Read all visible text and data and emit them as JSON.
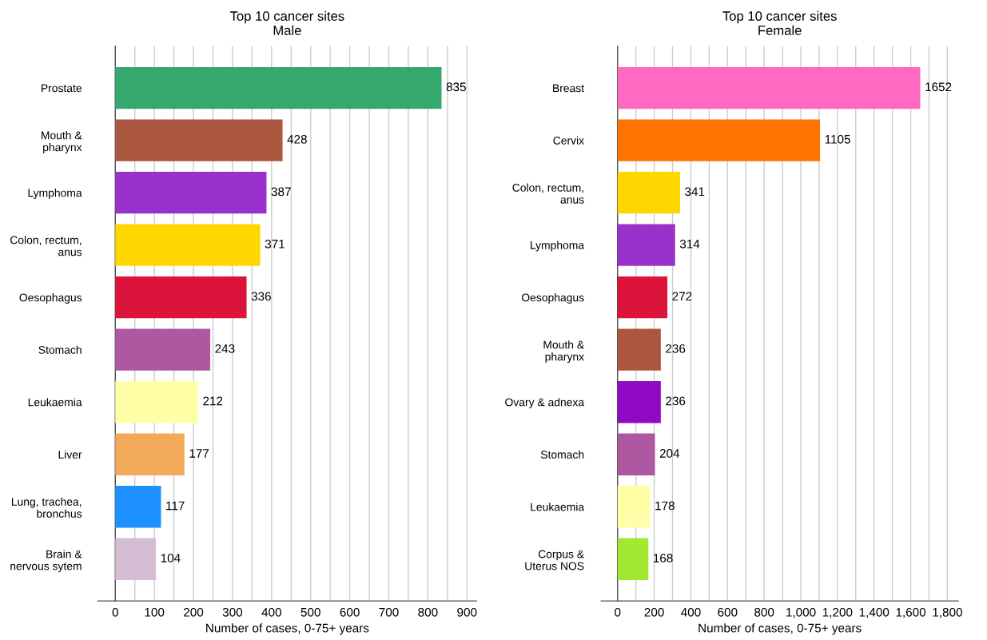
{
  "chart_data": [
    {
      "type": "bar",
      "orientation": "horizontal",
      "title": "Top 10 cancer sites\nMale",
      "xlabel": "Number of cases, 0-75+ years",
      "categories": [
        "Prostate",
        "Mouth &\npharynx",
        "Lymphoma",
        "Colon, rectum,\nanus",
        "Oesophagus",
        "Stomach",
        "Leukaemia",
        "Liver",
        "Lung, trachea,\nbronchus",
        "Brain &\nnervous sytem"
      ],
      "values": [
        835,
        428,
        387,
        371,
        336,
        243,
        212,
        177,
        117,
        104
      ],
      "colors": [
        "#35a86d",
        "#ab573f",
        "#9932cc",
        "#ffd700",
        "#dc143c",
        "#ad58a0",
        "#ffffa8",
        "#f2a95a",
        "#1e90ff",
        "#d6bcd3"
      ],
      "xlim": [
        -45,
        925
      ],
      "xticks": [
        0,
        {
          "value": 50,
          "label": null
        },
        100,
        {
          "value": 150,
          "label": null
        },
        200,
        {
          "value": 250,
          "label": null
        },
        300,
        {
          "value": 350,
          "label": null
        },
        400,
        {
          "value": 450,
          "label": null
        },
        500,
        {
          "value": 550,
          "label": null
        },
        600,
        {
          "value": 650,
          "label": null
        },
        700,
        {
          "value": 750,
          "label": null
        },
        800,
        {
          "value": 850,
          "label": null
        },
        900
      ],
      "grid": "x",
      "data_labels": true
    },
    {
      "type": "bar",
      "orientation": "horizontal",
      "title": "Top 10 cancer sites\nFemale",
      "xlabel": "Number of cases, 0-75+ years",
      "categories": [
        "Breast",
        "Cervix",
        "Colon, rectum,\nanus",
        "Lymphoma",
        "Oesophagus",
        "Mouth &\npharynx",
        "Ovary & adnexa",
        "Stomach",
        "Leukaemia",
        "Corpus &\nUterus NOS"
      ],
      "values": [
        1652,
        1105,
        341,
        314,
        272,
        236,
        236,
        204,
        178,
        168
      ],
      "colors": [
        "#ff69bf",
        "#ff7400",
        "#ffd700",
        "#9932cc",
        "#dc143c",
        "#ab573f",
        "#8f0ac2",
        "#ad58a0",
        "#ffffa8",
        "#a0e832"
      ],
      "xlim": [
        -90,
        1860
      ],
      "xticks": [
        0,
        {
          "value": 100,
          "label": null
        },
        {
          "value": 200,
          "label": "200"
        },
        {
          "value": 300,
          "label": null
        },
        {
          "value": 400,
          "label": "400"
        },
        {
          "value": 500,
          "label": null
        },
        {
          "value": 600,
          "label": "600"
        },
        {
          "value": 700,
          "label": null
        },
        {
          "value": 800,
          "label": "800"
        },
        {
          "value": 900,
          "label": null
        },
        {
          "value": 1000,
          "label": "1,000"
        },
        {
          "value": 1100,
          "label": null
        },
        {
          "value": 1200,
          "label": "1,200"
        },
        {
          "value": 1300,
          "label": null
        },
        {
          "value": 1400,
          "label": "1,400"
        },
        {
          "value": 1500,
          "label": null
        },
        {
          "value": 1600,
          "label": "1,600"
        },
        {
          "value": 1700,
          "label": null
        },
        {
          "value": 1800,
          "label": "1,800"
        }
      ],
      "grid": "x",
      "data_labels": true
    }
  ]
}
